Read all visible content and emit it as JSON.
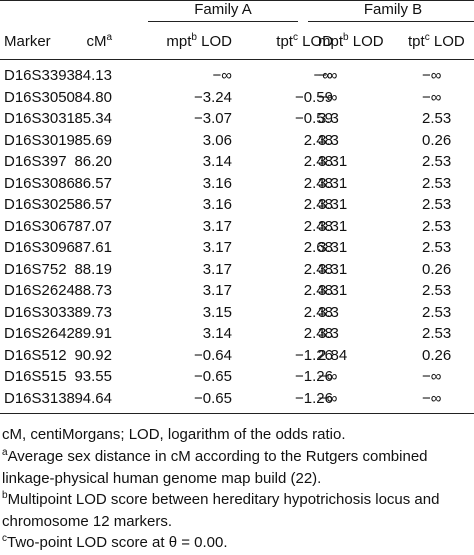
{
  "table": {
    "groups": [
      "Family A",
      "Family B"
    ],
    "header": [
      {
        "main": "Marker"
      },
      {
        "main": "cM",
        "sup": "a"
      },
      {
        "main": "mpt",
        "sup": "b",
        "after": " LOD"
      },
      {
        "main": "tpt",
        "sup": "c",
        "after": " LOD"
      },
      {
        "main": "mpt",
        "sup": "b",
        "after": " LOD"
      },
      {
        "main": "tpt",
        "sup": "c",
        "after": " LOD"
      }
    ],
    "rows": [
      [
        "D16S3393",
        "84.13",
        "−∞",
        "−∞",
        "−∞",
        "−∞"
      ],
      [
        "D16S3050",
        "84.80",
        "−3.24",
        "−0.59",
        "−∞",
        "−∞"
      ],
      [
        "D16S3031",
        "85.34",
        "−3.07",
        "−0.59",
        "3.3",
        "2.53"
      ],
      [
        "D16S3019",
        "85.69",
        "3.06",
        "2.48",
        "3.3",
        "0.26"
      ],
      [
        "D16S397",
        "86.20",
        "3.14",
        "2.48",
        "3.31",
        "2.53"
      ],
      [
        "D16S3086",
        "86.57",
        "3.16",
        "2.48",
        "3.31",
        "2.53"
      ],
      [
        "D16S3025",
        "86.57",
        "3.16",
        "2.48",
        "3.31",
        "2.53"
      ],
      [
        "D16S3067",
        "87.07",
        "3.17",
        "2.48",
        "3.31",
        "2.53"
      ],
      [
        "D16S3096",
        "87.61",
        "3.17",
        "2.68",
        "3.31",
        "2.53"
      ],
      [
        "D16S752",
        "88.19",
        "3.17",
        "2.48",
        "3.31",
        "0.26"
      ],
      [
        "D16S2624",
        "88.73",
        "3.17",
        "2.48",
        "3.31",
        "2.53"
      ],
      [
        "D16S3033",
        "89.73",
        "3.15",
        "2.48",
        "3.3",
        "2.53"
      ],
      [
        "D16S2642",
        "89.91",
        "3.14",
        "2.48",
        "3.3",
        "2.53"
      ],
      [
        "D16S512",
        "90.92",
        "−0.64",
        "−1.26",
        "2.84",
        "0.26"
      ],
      [
        "D16S515",
        "93.55",
        "−0.65",
        "−1.26",
        "−∞",
        "−∞"
      ],
      [
        "D16S3138",
        "94.64",
        "−0.65",
        "−1.26",
        "−∞",
        "−∞"
      ]
    ]
  },
  "footnotes": [
    {
      "text": "cM, centiMorgans; LOD, logarithm of the odds ratio."
    },
    {
      "mark": "a",
      "text": "Average sex distance in cM according to the Rutgers combined linkage-physical human genome map build (22)."
    },
    {
      "mark": "b",
      "text": "Multipoint LOD score between hereditary hypotrichosis locus and chromosome 12 markers."
    },
    {
      "mark": "c",
      "text": "Two-point LOD score at θ = 0.00."
    }
  ]
}
